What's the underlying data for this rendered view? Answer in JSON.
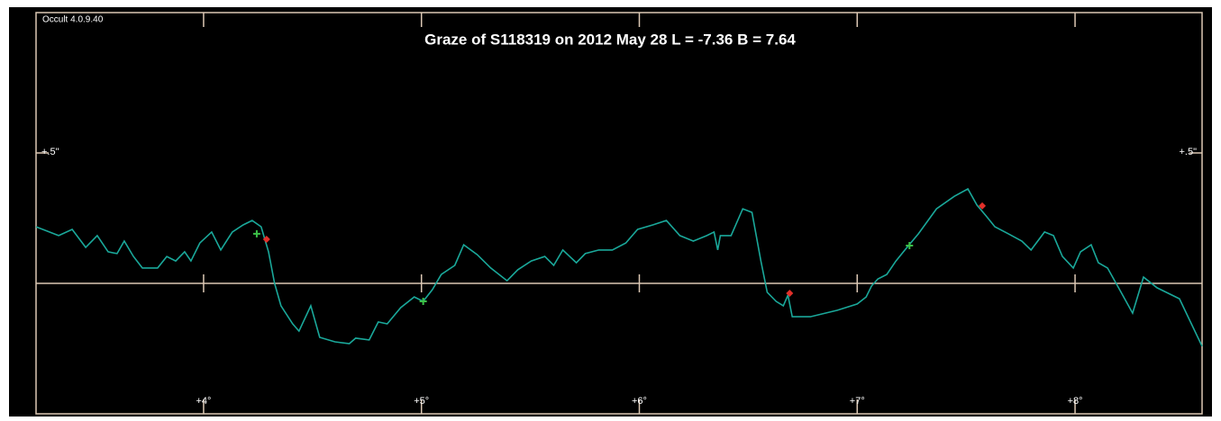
{
  "chart_data": {
    "type": "line",
    "title": "Graze of  S118319  on  2012 May 28   L = -7.36   B = 7.64",
    "annotation": "Occult 4.0.9.40",
    "xlim": [
      3.231,
      8.583
    ],
    "ylim": [
      -0.5,
      1.038
    ],
    "xticks": [
      {
        "value": 4,
        "label": "+4°"
      },
      {
        "value": 5,
        "label": "+5°"
      },
      {
        "value": 6,
        "label": "+6°"
      },
      {
        "value": 7,
        "label": "+7°"
      },
      {
        "value": 8,
        "label": "+8°"
      }
    ],
    "yticks": [
      {
        "value": 0.5,
        "label": "+.5\""
      }
    ],
    "series": [
      {
        "color": "#1aa89a",
        "x": [
          3.231,
          3.335,
          3.397,
          3.459,
          3.512,
          3.562,
          3.603,
          3.636,
          3.678,
          3.719,
          3.789,
          3.831,
          3.872,
          3.913,
          3.942,
          3.983,
          4.037,
          4.079,
          4.132,
          4.182,
          4.223,
          4.264,
          4.298,
          4.326,
          4.355,
          4.409,
          4.438,
          4.492,
          4.533,
          4.603,
          4.669,
          4.698,
          4.76,
          4.802,
          4.843,
          4.905,
          4.967,
          5.008,
          5.05,
          5.091,
          5.153,
          5.194,
          5.256,
          5.318,
          5.393,
          5.442,
          5.504,
          5.566,
          5.607,
          5.649,
          5.711,
          5.752,
          5.814,
          5.876,
          5.938,
          5.992,
          6.062,
          6.124,
          6.186,
          6.248,
          6.31,
          6.343,
          6.36,
          6.372,
          6.421,
          6.475,
          6.517,
          6.558,
          6.587,
          6.628,
          6.661,
          6.682,
          6.702,
          6.785,
          6.909,
          7.0,
          7.041,
          7.066,
          7.095,
          7.136,
          7.178,
          7.219,
          7.281,
          7.364,
          7.446,
          7.508,
          7.55,
          7.591,
          7.632,
          7.694,
          7.756,
          7.798,
          7.86,
          7.901,
          7.942,
          7.992,
          8.025,
          8.074,
          8.107,
          8.149,
          8.211,
          8.264,
          8.314,
          8.376,
          8.479,
          8.583
        ],
        "values": [
          0.217,
          0.183,
          0.207,
          0.138,
          0.183,
          0.121,
          0.114,
          0.162,
          0.103,
          0.059,
          0.059,
          0.103,
          0.086,
          0.121,
          0.086,
          0.155,
          0.197,
          0.128,
          0.197,
          0.224,
          0.241,
          0.217,
          0.121,
          0,
          -0.086,
          -0.155,
          -0.183,
          -0.086,
          -0.207,
          -0.224,
          -0.231,
          -0.21,
          -0.217,
          -0.148,
          -0.155,
          -0.093,
          -0.052,
          -0.069,
          -0.024,
          0.034,
          0.069,
          0.148,
          0.11,
          0.059,
          0.01,
          0.052,
          0.086,
          0.103,
          0.069,
          0.128,
          0.079,
          0.114,
          0.128,
          0.128,
          0.155,
          0.207,
          0.224,
          0.241,
          0.183,
          0.162,
          0.183,
          0.197,
          0.128,
          0.183,
          0.183,
          0.286,
          0.272,
          0.086,
          -0.034,
          -0.069,
          -0.086,
          -0.045,
          -0.128,
          -0.128,
          -0.103,
          -0.079,
          -0.052,
          -0.01,
          0.017,
          0.034,
          0.086,
          0.128,
          0.19,
          0.286,
          0.334,
          0.362,
          0.3,
          0.259,
          0.217,
          0.19,
          0.162,
          0.128,
          0.197,
          0.183,
          0.103,
          0.059,
          0.121,
          0.148,
          0.079,
          0.059,
          -0.034,
          -0.114,
          0.024,
          -0.017,
          -0.059,
          -0.241
        ]
      }
    ],
    "markers": [
      {
        "color": "#3cc048",
        "shape": "plus",
        "x": [
          4.244,
          5.008,
          7.24
        ],
        "values": [
          0.19,
          -0.069,
          0.145
        ]
      },
      {
        "color": "#e2302a",
        "shape": "diamond",
        "x": [
          4.289,
          6.69,
          7.574
        ],
        "values": [
          0.169,
          -0.038,
          0.297
        ]
      }
    ],
    "frame_color": "#dcc8b4"
  }
}
